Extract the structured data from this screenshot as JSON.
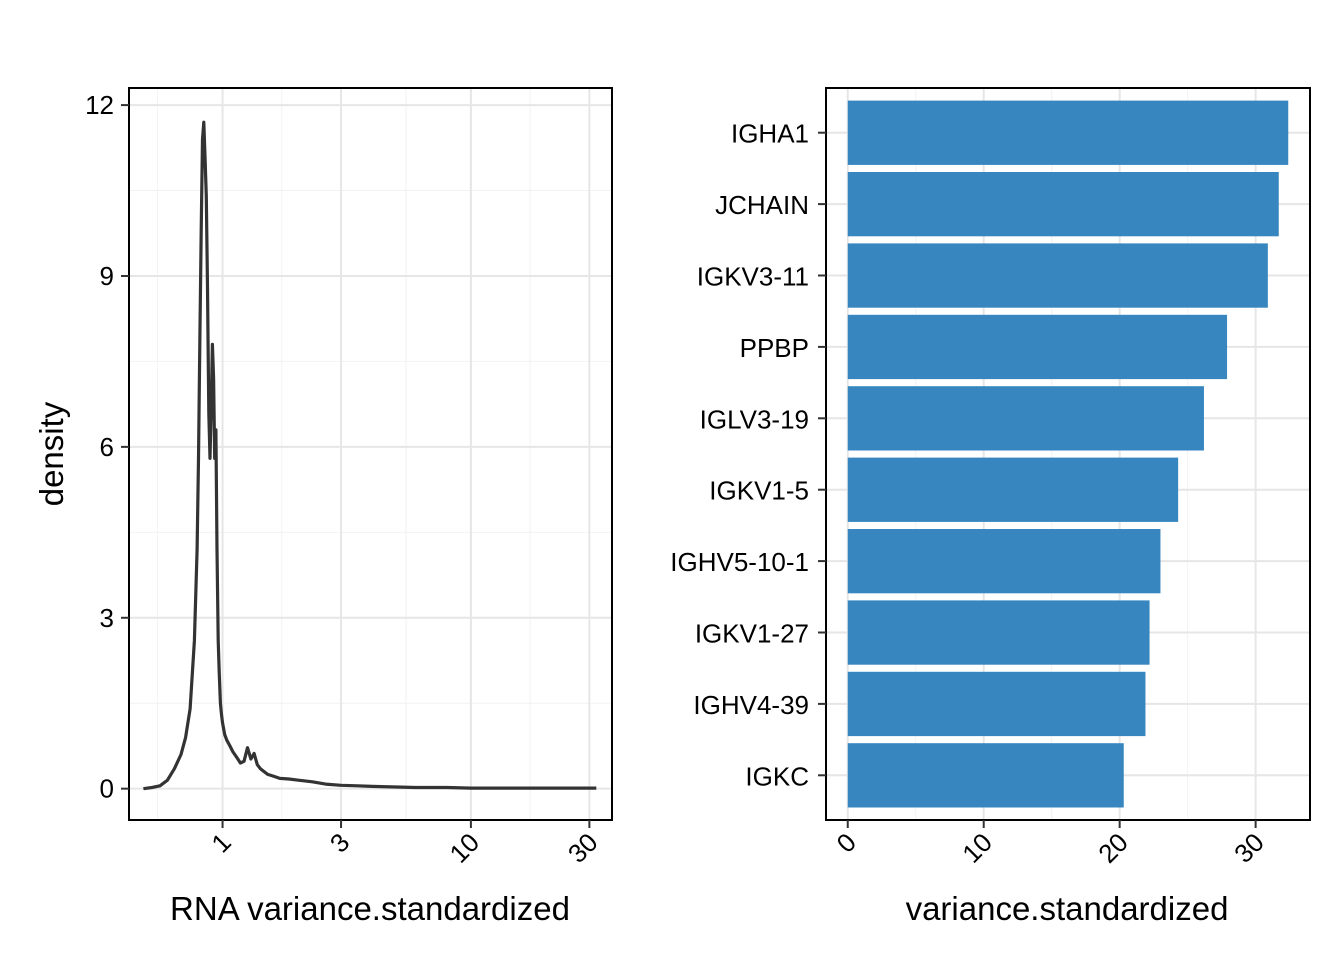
{
  "colors": {
    "density_line": "#333333",
    "bar_fill": "#3182bd",
    "grid_major": "#e6e6e6",
    "grid_minor": "#f2f2f2"
  },
  "chart_data": [
    {
      "type": "line",
      "xlabel": "RNA variance.standardized",
      "ylabel": "density",
      "x_scale": "log10",
      "xlim": [
        0.42,
        37
      ],
      "ylim": [
        -0.55,
        12.3
      ],
      "x_ticks": [
        {
          "value": 1,
          "label": "1"
        },
        {
          "value": 3,
          "label": "3"
        },
        {
          "value": 10,
          "label": "10"
        },
        {
          "value": 30,
          "label": "30"
        }
      ],
      "y_ticks": [
        {
          "value": 0,
          "label": "0"
        },
        {
          "value": 3,
          "label": "3"
        },
        {
          "value": 6,
          "label": "6"
        },
        {
          "value": 9,
          "label": "9"
        },
        {
          "value": 12,
          "label": "12"
        }
      ],
      "grid": true,
      "series": [
        {
          "x": [
            0.48,
            0.52,
            0.56,
            0.6,
            0.64,
            0.68,
            0.71,
            0.74,
            0.77,
            0.79,
            0.8,
            0.81,
            0.82,
            0.83,
            0.84,
            0.85,
            0.86,
            0.87,
            0.88,
            0.89,
            0.9,
            0.91,
            0.92,
            0.93,
            0.94,
            0.95,
            0.96,
            0.97,
            0.98,
            0.99,
            1.0,
            1.02,
            1.04,
            1.07,
            1.1,
            1.14,
            1.18,
            1.22,
            1.26,
            1.3,
            1.34,
            1.38,
            1.42,
            1.47,
            1.52,
            1.6,
            1.7,
            1.85,
            2.0,
            2.3,
            2.6,
            3.0,
            3.5,
            4.0,
            5.0,
            6.0,
            8.0,
            10.0,
            13.0,
            16.0,
            20.0,
            25.0,
            32.0
          ],
          "y": [
            0.0,
            0.02,
            0.05,
            0.15,
            0.35,
            0.6,
            0.9,
            1.4,
            2.6,
            4.2,
            5.8,
            7.8,
            9.8,
            11.4,
            11.7,
            11.1,
            10.4,
            8.8,
            6.6,
            5.8,
            6.7,
            7.8,
            7.2,
            5.8,
            6.3,
            4.2,
            2.6,
            2.0,
            1.5,
            1.3,
            1.15,
            0.95,
            0.85,
            0.75,
            0.65,
            0.55,
            0.45,
            0.48,
            0.72,
            0.52,
            0.62,
            0.42,
            0.35,
            0.3,
            0.25,
            0.22,
            0.18,
            0.17,
            0.15,
            0.12,
            0.08,
            0.06,
            0.05,
            0.04,
            0.03,
            0.02,
            0.02,
            0.01,
            0.01,
            0.01,
            0.01,
            0.01,
            0.01
          ]
        }
      ]
    },
    {
      "type": "bar",
      "orientation": "horizontal",
      "xlabel": "variance.standardized",
      "ylabel": "",
      "categories": [
        "IGHA1",
        "JCHAIN",
        "IGKV3-11",
        "PPBP",
        "IGLV3-19",
        "IGKV1-5",
        "IGHV5-10-1",
        "IGKV1-27",
        "IGHV4-39",
        "IGKC"
      ],
      "values": [
        32.4,
        31.7,
        30.9,
        27.9,
        26.2,
        24.3,
        23.0,
        22.2,
        21.9,
        20.3
      ],
      "xlim": [
        -1.6,
        34.0
      ],
      "x_ticks": [
        {
          "value": 0,
          "label": "0"
        },
        {
          "value": 10,
          "label": "10"
        },
        {
          "value": 20,
          "label": "20"
        },
        {
          "value": 30,
          "label": "30"
        }
      ],
      "grid": true
    }
  ]
}
